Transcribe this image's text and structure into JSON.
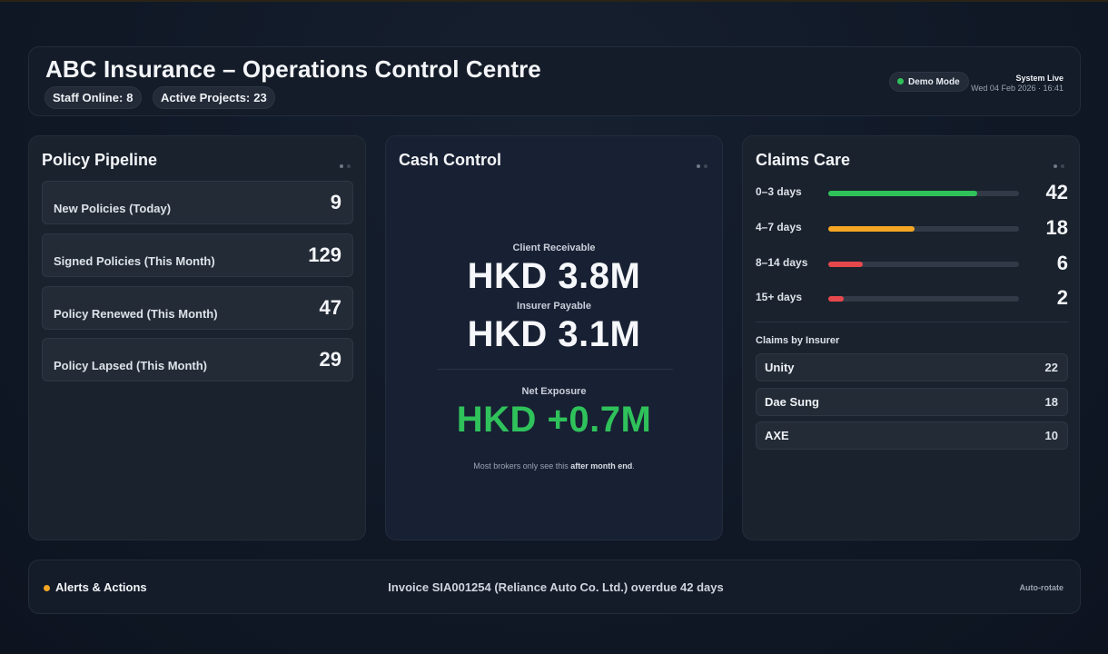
{
  "header": {
    "title": "ABC Insurance – Operations Control Centre",
    "staff_label": "Staff Online:",
    "staff_value": "8",
    "projects_label": "Active Projects:",
    "projects_value": "23",
    "demo_mode": "Demo Mode",
    "system_status": "System Live",
    "timestamp": "Wed 04 Feb 2026 · 16:41"
  },
  "policy_pipeline": {
    "title": "Policy Pipeline",
    "rows": [
      {
        "label": "New Policies (Today)",
        "value": "9"
      },
      {
        "label": "Signed Policies (This Month)",
        "value": "129"
      },
      {
        "label": "Policy Renewed (This Month)",
        "value": "47"
      },
      {
        "label": "Policy Lapsed (This Month)",
        "value": "29"
      }
    ]
  },
  "cash_control": {
    "title": "Cash Control",
    "receivable_label": "Client Receivable",
    "receivable_value": "HKD 3.8M",
    "payable_label": "Insurer Payable",
    "payable_value": "HKD 3.1M",
    "net_label": "Net Exposure",
    "net_value": "HKD +0.7M",
    "note_prefix": "Most brokers only see this ",
    "note_emphasis": "after month end",
    "note_suffix": "."
  },
  "claims_care": {
    "title": "Claims Care",
    "aging": [
      {
        "label": "0–3 days",
        "value": "42",
        "fill": 0.78,
        "color": "#2fc25b"
      },
      {
        "label": "4–7 days",
        "value": "18",
        "fill": 0.45,
        "color": "#f5a623"
      },
      {
        "label": "8–14 days",
        "value": "6",
        "fill": 0.18,
        "color": "#e5484d"
      },
      {
        "label": "15+ days",
        "value": "2",
        "fill": 0.08,
        "color": "#e5484d"
      }
    ],
    "insurer_heading": "Claims by Insurer",
    "insurers": [
      {
        "name": "Unity",
        "count": "22"
      },
      {
        "name": "Dae Sung",
        "count": "18"
      },
      {
        "name": "AXE",
        "count": "10"
      }
    ]
  },
  "alerts": {
    "title": "Alerts & Actions",
    "message": "Invoice SIA001254 (Reliance Auto Co. Ltd.) overdue 42 days",
    "auto_rotate": "Auto-rotate",
    "dot_color": "#f5a623"
  }
}
